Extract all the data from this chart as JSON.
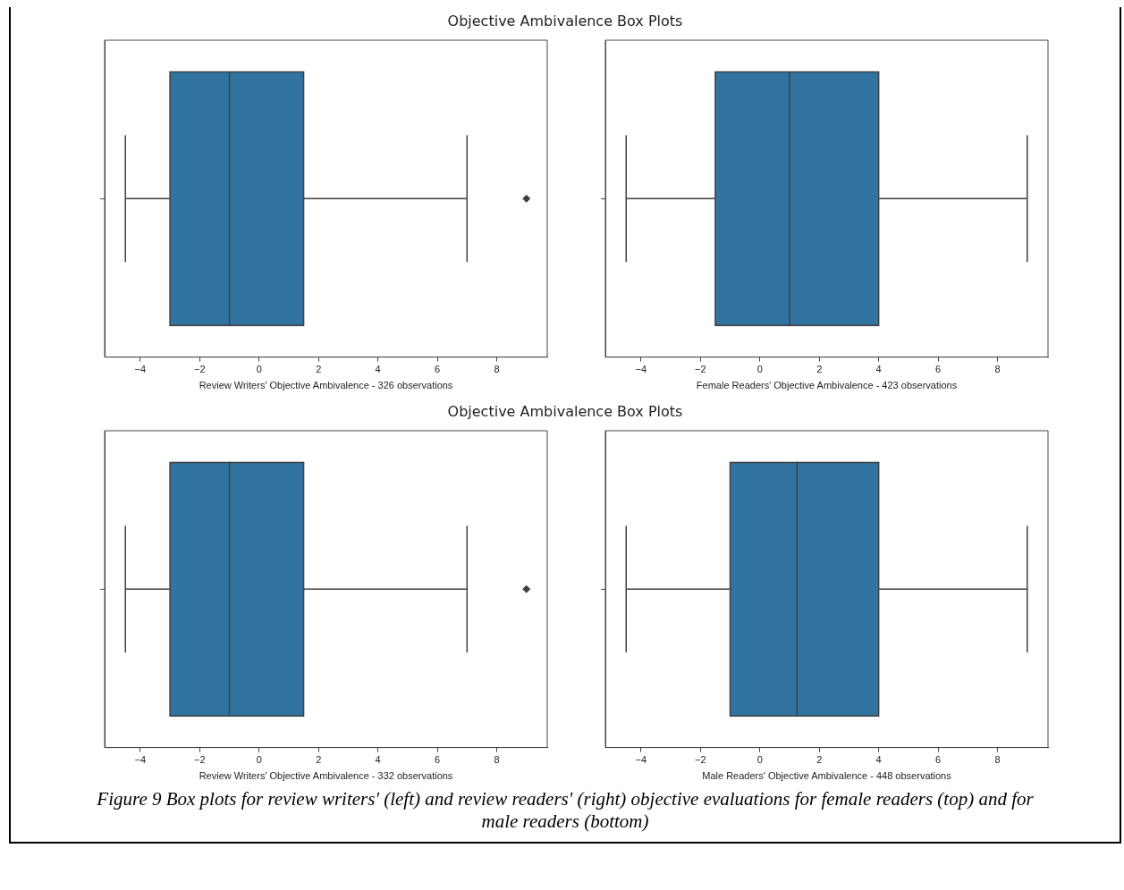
{
  "chart_data": [
    {
      "type": "box",
      "title": "Objective Ambivalence Box Plots",
      "orientation": "horizontal",
      "categories": [
        null
      ],
      "color": "#3274a1",
      "marker": "diamond",
      "tick_labels": "x",
      "xlabel": "Review Writers' Objective Ambivalence - 326 observations",
      "xlim": [
        -5.2,
        9.7
      ],
      "xticks": [
        -4,
        -2,
        0,
        2,
        4,
        6,
        8
      ],
      "boxes": [
        {
          "low": -4.5,
          "q1": -3,
          "median": -1,
          "q3": 1.5,
          "high": 7,
          "outliers": [
            9
          ]
        }
      ]
    },
    {
      "type": "box",
      "orientation": "horizontal",
      "categories": [
        null
      ],
      "color": "#3274a1",
      "tick_labels": "x",
      "xlabel": "Female Readers' Objective Ambivalence - 423 observations",
      "xlim": [
        -5.2,
        9.7
      ],
      "xticks": [
        -4,
        -2,
        0,
        2,
        4,
        6,
        8
      ],
      "boxes": [
        {
          "low": -4.5,
          "q1": -1.5,
          "median": 1,
          "q3": 4,
          "high": 9
        }
      ]
    },
    {
      "type": "box",
      "title": "Objective Ambivalence Box Plots",
      "orientation": "horizontal",
      "categories": [
        null
      ],
      "color": "#3274a1",
      "marker": "diamond",
      "tick_labels": "x",
      "xlabel": "Review Writers' Objective Ambivalence - 332 observations",
      "xlim": [
        -5.2,
        9.7
      ],
      "xticks": [
        -4,
        -2,
        0,
        2,
        4,
        6,
        8
      ],
      "boxes": [
        {
          "low": -4.5,
          "q1": -3,
          "median": -1,
          "q3": 1.5,
          "high": 7,
          "outliers": [
            9
          ]
        }
      ]
    },
    {
      "type": "box",
      "orientation": "horizontal",
      "categories": [
        null
      ],
      "color": "#3274a1",
      "tick_labels": "x",
      "xlabel": "Male Readers' Objective Ambivalence - 448 observations",
      "xlim": [
        -5.2,
        9.7
      ],
      "xticks": [
        -4,
        -2,
        0,
        2,
        4,
        6,
        8
      ],
      "boxes": [
        {
          "low": -4.5,
          "q1": -1,
          "median": 1.25,
          "q3": 4,
          "high": 9
        }
      ],
      "annotations": [
        "Figure 9 Box plots for review writers' (left) and review readers' (right) objective evaluations for female readers (top) and for male readers (bottom)"
      ]
    }
  ]
}
